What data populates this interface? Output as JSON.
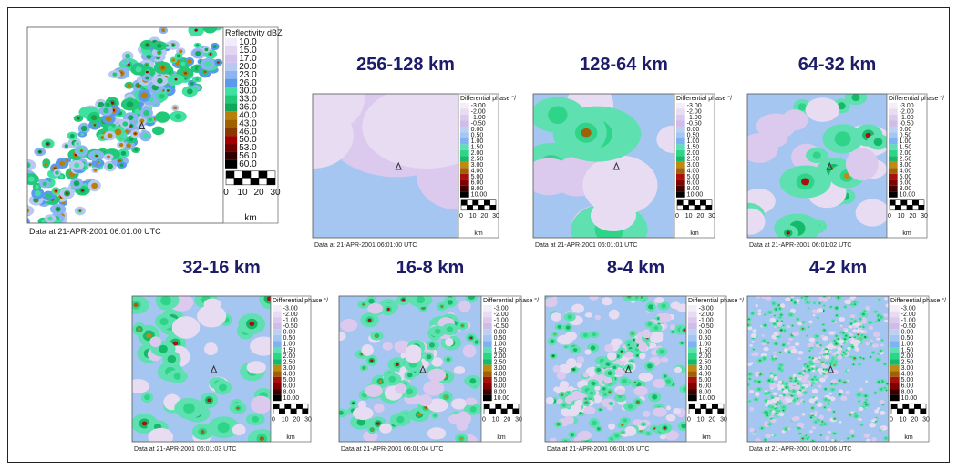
{
  "panels": [
    {
      "title": null,
      "legend_title": "Reflectivity dBZ",
      "legend_labels": [
        "10.0",
        "15.0",
        "17.0",
        "20.0",
        "23.0",
        "26.0",
        "30.0",
        "33.0",
        "36.0",
        "40.0",
        "43.0",
        "46.0",
        "50.0",
        "53.0",
        "56.0",
        "60.0"
      ],
      "scale_labels": [
        "0",
        "10",
        "20",
        "30"
      ],
      "unit": "km",
      "footer": "Data at 21-APR-2001 06:01:00 UTC"
    },
    {
      "title": "256-128 km",
      "legend_title": "Differential phase °/",
      "legend_labels": [
        "-3.00",
        "-2.00",
        "-1.00",
        "-0.50",
        "0.00",
        "0.50",
        "1.00",
        "1.50",
        "2.00",
        "2.50",
        "3.00",
        "4.00",
        "5.00",
        "6.00",
        "8.00",
        "10.00"
      ],
      "scale_labels": [
        "0",
        "10",
        "20",
        "30"
      ],
      "unit": "km",
      "footer": "Data at 21-APR-2001 06:01:00 UTC"
    },
    {
      "title": "128-64 km",
      "legend_title": "Differential phase °/",
      "legend_labels": [
        "-3.00",
        "-2.00",
        "-1.00",
        "-0.50",
        "0.00",
        "0.50",
        "1.00",
        "1.50",
        "2.00",
        "2.50",
        "3.00",
        "4.00",
        "5.00",
        "6.00",
        "8.00",
        "10.00"
      ],
      "scale_labels": [
        "0",
        "10",
        "20",
        "30"
      ],
      "unit": "km",
      "footer": "Data at 21-APR-2001 06:01:01 UTC"
    },
    {
      "title": "64-32 km",
      "legend_title": "Differential phase °/",
      "legend_labels": [
        "-3.00",
        "-2.00",
        "-1.00",
        "-0.50",
        "0.00",
        "0.50",
        "1.00",
        "1.50",
        "2.00",
        "2.50",
        "3.00",
        "4.00",
        "5.00",
        "6.00",
        "8.00",
        "10.00"
      ],
      "scale_labels": [
        "0",
        "10",
        "20",
        "30"
      ],
      "unit": "km",
      "footer": "Data at 21-APR-2001 06:01:02 UTC"
    },
    {
      "title": "32-16 km",
      "legend_title": "Differential phase °/",
      "legend_labels": [
        "-3.00",
        "-2.00",
        "-1.00",
        "-0.50",
        "0.00",
        "0.50",
        "1.00",
        "1.50",
        "2.00",
        "2.50",
        "3.00",
        "4.00",
        "5.00",
        "6.00",
        "8.00",
        "10.00"
      ],
      "scale_labels": [
        "0",
        "10",
        "20",
        "30"
      ],
      "unit": "km",
      "footer": "Data at 21-APR-2001 06:01:03 UTC"
    },
    {
      "title": "16-8 km",
      "legend_title": "Differential phase °/",
      "legend_labels": [
        "-3.00",
        "-2.00",
        "-1.00",
        "-0.50",
        "0.00",
        "0.50",
        "1.00",
        "1.50",
        "2.00",
        "2.50",
        "3.00",
        "4.00",
        "5.00",
        "6.00",
        "8.00",
        "10.00"
      ],
      "scale_labels": [
        "0",
        "10",
        "20",
        "30"
      ],
      "unit": "km",
      "footer": "Data at 21-APR-2001 06:01:04 UTC"
    },
    {
      "title": "8-4 km",
      "legend_title": "Differential phase °/",
      "legend_labels": [
        "-3.00",
        "-2.00",
        "-1.00",
        "-0.50",
        "0.00",
        "0.50",
        "1.00",
        "1.50",
        "2.00",
        "2.50",
        "3.00",
        "4.00",
        "5.00",
        "6.00",
        "8.00",
        "10.00"
      ],
      "scale_labels": [
        "0",
        "10",
        "20",
        "30"
      ],
      "unit": "km",
      "footer": "Data at 21-APR-2001 06:01:05 UTC"
    },
    {
      "title": "4-2 km",
      "legend_title": "Differential phase °/",
      "legend_labels": [
        "-3.00",
        "-2.00",
        "-1.00",
        "-0.50",
        "0.00",
        "0.50",
        "1.00",
        "1.50",
        "2.00",
        "2.50",
        "3.00",
        "4.00",
        "5.00",
        "6.00",
        "8.00",
        "10.00"
      ],
      "scale_labels": [
        "0",
        "10",
        "20",
        "30"
      ],
      "unit": "km",
      "footer": "Data at 21-APR-2001 06:01:06 UTC"
    }
  ]
}
